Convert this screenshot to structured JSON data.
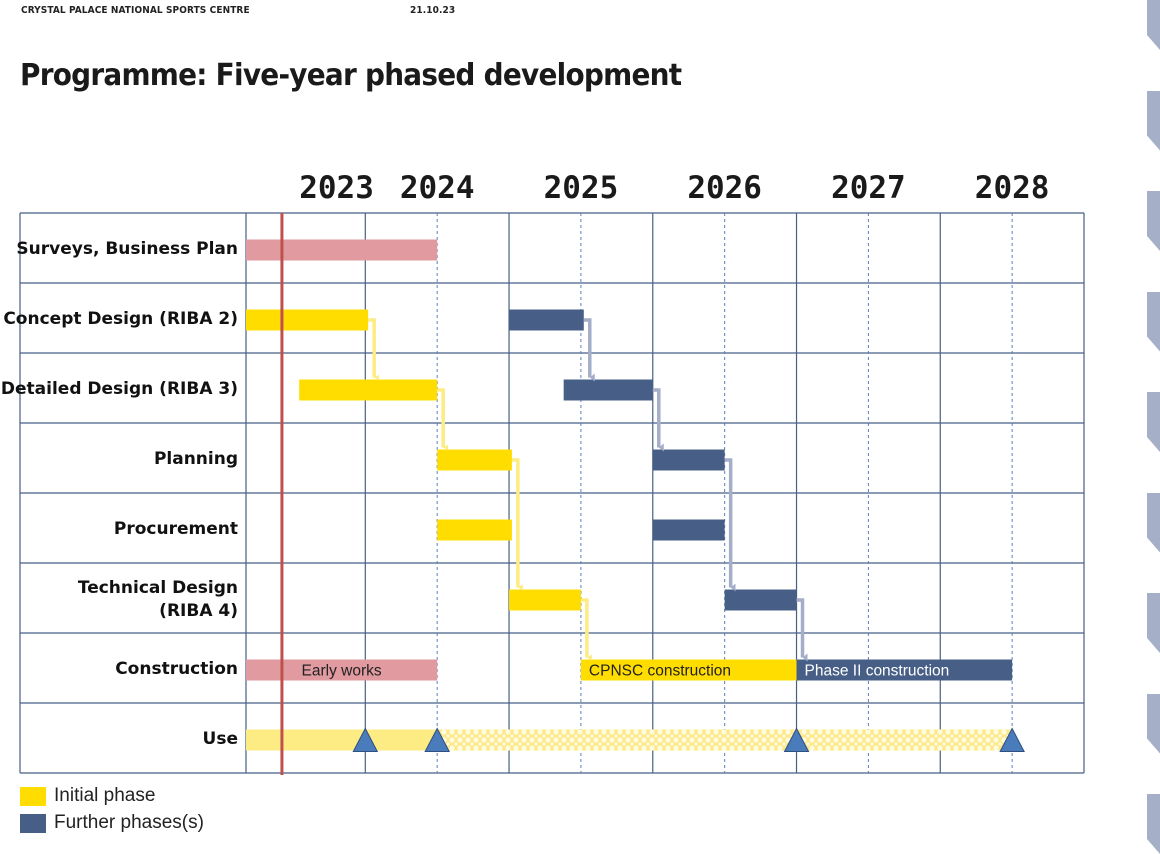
{
  "header": {
    "organisation": "CRYSTAL PALACE NATIONAL SPORTS CENTRE",
    "date": "21.10.23"
  },
  "page_title": "Programme: Five-year phased development",
  "colors": {
    "initial": "#ffdd00",
    "initial_light": "#fdec84",
    "further": "#475f87",
    "early": "#e09aa0",
    "connector_initial": "#fdec84",
    "connector_further": "#a5aec9",
    "milestone": "#4a7bbb",
    "today_line": "#c0504d",
    "grid": "#475f87",
    "side_tab": "#a5b0c8"
  },
  "legend": [
    {
      "label": "Initial phase",
      "color": "#ffdd00"
    },
    {
      "label": "Further phases(s)",
      "color": "#475f87"
    }
  ],
  "chart_data": {
    "type": "gantt",
    "title": "Programme: Five-year phased development",
    "x_axis": {
      "labels": [
        {
          "text": "2023",
          "at": 2023.3
        },
        {
          "text": "2024",
          "at": 2024.0
        },
        {
          "text": "2025",
          "at": 2025.0
        },
        {
          "text": "2026",
          "at": 2026.0
        },
        {
          "text": "2027",
          "at": 2027.0
        },
        {
          "text": "2028",
          "at": 2028.0
        }
      ],
      "range": [
        2022.67,
        2028.5
      ],
      "solid_gridlines": [
        2022.67,
        2023.5,
        2024.5,
        2025.5,
        2026.5,
        2027.5,
        2028.5
      ],
      "dashed_gridlines": [
        2024.0,
        2025.0,
        2026.0,
        2027.0,
        2028.0
      ]
    },
    "today_marker": 2022.92,
    "rows": [
      "Surveys, Business Plan",
      "Concept Design (RIBA 2)",
      "Detailed Design (RIBA 3)",
      "Planning",
      "Procurement",
      "Technical Design (RIBA 4)",
      "Construction",
      "Use"
    ],
    "tasks": [
      {
        "row": 0,
        "phase": "early",
        "start": 2022.67,
        "end": 2024.0,
        "label": ""
      },
      {
        "row": 1,
        "phase": "initial",
        "start": 2022.67,
        "end": 2023.52,
        "label": ""
      },
      {
        "row": 1,
        "phase": "further",
        "start": 2024.5,
        "end": 2025.02,
        "label": ""
      },
      {
        "row": 2,
        "phase": "initial",
        "start": 2023.04,
        "end": 2024.0,
        "label": ""
      },
      {
        "row": 2,
        "phase": "further",
        "start": 2024.88,
        "end": 2025.5,
        "label": ""
      },
      {
        "row": 3,
        "phase": "initial",
        "start": 2024.0,
        "end": 2024.52,
        "label": ""
      },
      {
        "row": 3,
        "phase": "further",
        "start": 2025.5,
        "end": 2026.0,
        "label": ""
      },
      {
        "row": 4,
        "phase": "initial",
        "start": 2024.0,
        "end": 2024.52,
        "label": ""
      },
      {
        "row": 4,
        "phase": "further",
        "start": 2025.5,
        "end": 2026.0,
        "label": ""
      },
      {
        "row": 5,
        "phase": "initial",
        "start": 2024.5,
        "end": 2025.0,
        "label": ""
      },
      {
        "row": 5,
        "phase": "further",
        "start": 2026.0,
        "end": 2026.5,
        "label": ""
      },
      {
        "row": 6,
        "phase": "early",
        "start": 2022.67,
        "end": 2024.0,
        "label": "Early works"
      },
      {
        "row": 6,
        "phase": "initial",
        "start": 2025.0,
        "end": 2026.5,
        "label": "CPNSC construction"
      },
      {
        "row": 6,
        "phase": "further",
        "start": 2026.5,
        "end": 2028.0,
        "label": "Phase II construction"
      }
    ],
    "use_row": {
      "row": 7,
      "solid": {
        "start": 2022.67,
        "end": 2024.0
      },
      "patterned": {
        "start": 2024.0,
        "end": 2028.0
      }
    },
    "milestones": [
      {
        "row": 7,
        "at": 2023.5
      },
      {
        "row": 7,
        "at": 2024.0
      },
      {
        "row": 7,
        "at": 2026.5
      },
      {
        "row": 7,
        "at": 2028.0
      }
    ],
    "dependencies": [
      {
        "from": 1,
        "to": 3,
        "phase": "initial"
      },
      {
        "from": 3,
        "to": 5,
        "phase": "initial"
      },
      {
        "from": 5,
        "to": 9,
        "phase": "initial"
      },
      {
        "from": 9,
        "to": 12,
        "phase": "initial"
      },
      {
        "from": 2,
        "to": 4,
        "phase": "further"
      },
      {
        "from": 4,
        "to": 6,
        "phase": "further"
      },
      {
        "from": 6,
        "to": 10,
        "phase": "further"
      },
      {
        "from": 10,
        "to": 13,
        "phase": "further"
      }
    ]
  }
}
